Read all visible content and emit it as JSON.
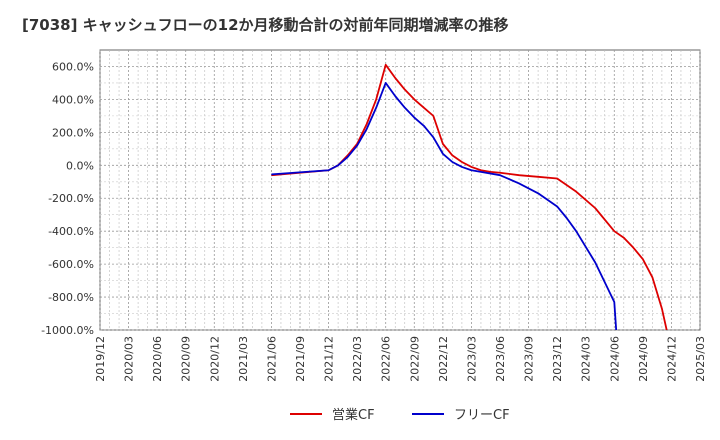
{
  "chart_data": {
    "type": "line",
    "title": "[7038]  キャッシュフローの12か月移動合計の対前年同期増減率の推移",
    "xlabel": "",
    "ylabel": "",
    "ylim": [
      -1000,
      700
    ],
    "yticks": [
      600,
      400,
      200,
      0,
      -200,
      -400,
      -600,
      -800,
      -1000
    ],
    "ytick_labels": [
      "600.0%",
      "400.0%",
      "200.0%",
      "0.0%",
      "-200.0%",
      "-400.0%",
      "-600.0%",
      "-800.0%",
      "-1000.0%"
    ],
    "xtick_labels": [
      "2019/12",
      "2020/03",
      "2020/06",
      "2020/09",
      "2020/12",
      "2021/03",
      "2021/06",
      "2021/09",
      "2021/12",
      "2022/03",
      "2022/06",
      "2022/09",
      "2022/12",
      "2023/03",
      "2023/06",
      "2023/09",
      "2023/12",
      "2024/03",
      "2024/06",
      "2024/09",
      "2024/12",
      "2025/03"
    ],
    "grid": true,
    "legend_position": "bottom-center",
    "series": [
      {
        "name": "営業CF",
        "color": "#dd0000",
        "points": [
          [
            18,
            -60
          ],
          [
            24,
            -30
          ],
          [
            25,
            0
          ],
          [
            26,
            60
          ],
          [
            27,
            130
          ],
          [
            28,
            250
          ],
          [
            29,
            400
          ],
          [
            30,
            610
          ],
          [
            31,
            530
          ],
          [
            32,
            460
          ],
          [
            33,
            400
          ],
          [
            34,
            350
          ],
          [
            35,
            300
          ],
          [
            36,
            130
          ],
          [
            37,
            60
          ],
          [
            38,
            20
          ],
          [
            39,
            -10
          ],
          [
            40,
            -30
          ],
          [
            41,
            -40
          ],
          [
            42,
            -45
          ],
          [
            44,
            -60
          ],
          [
            46,
            -70
          ],
          [
            48,
            -80
          ],
          [
            50,
            -160
          ],
          [
            52,
            -260
          ],
          [
            54,
            -400
          ],
          [
            55,
            -440
          ],
          [
            56,
            -500
          ],
          [
            57,
            -570
          ],
          [
            58,
            -680
          ],
          [
            59,
            -870
          ],
          [
            59.5,
            -1000
          ]
        ]
      },
      {
        "name": "フリーCF",
        "color": "#0000cc",
        "points": [
          [
            18,
            -55
          ],
          [
            24,
            -30
          ],
          [
            25,
            0
          ],
          [
            26,
            50
          ],
          [
            27,
            120
          ],
          [
            28,
            220
          ],
          [
            29,
            350
          ],
          [
            30,
            500
          ],
          [
            31,
            420
          ],
          [
            32,
            350
          ],
          [
            33,
            290
          ],
          [
            34,
            240
          ],
          [
            35,
            170
          ],
          [
            36,
            70
          ],
          [
            37,
            20
          ],
          [
            38,
            -10
          ],
          [
            39,
            -30
          ],
          [
            40,
            -40
          ],
          [
            42,
            -60
          ],
          [
            44,
            -110
          ],
          [
            46,
            -170
          ],
          [
            48,
            -250
          ],
          [
            49,
            -320
          ],
          [
            50,
            -400
          ],
          [
            52,
            -590
          ],
          [
            54,
            -830
          ],
          [
            54.2,
            -1000
          ]
        ]
      }
    ]
  }
}
